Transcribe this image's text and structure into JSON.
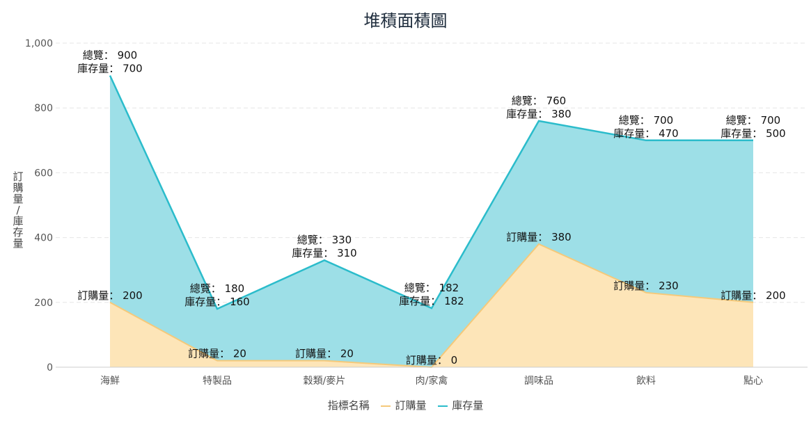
{
  "chart_data": {
    "type": "area",
    "stacked": true,
    "title": "堆積面積圖",
    "ylabel": "訂購量/庫存量",
    "legend_title": "指標名稱",
    "legend_position": "bottom",
    "categories": [
      "海鮮",
      "特製品",
      "穀類/麥片",
      "肉/家禽",
      "調味品",
      "飲料",
      "點心"
    ],
    "series": [
      {
        "name": "訂購量",
        "values": [
          200,
          20,
          20,
          0,
          380,
          230,
          200
        ],
        "color": "#f5c97a",
        "fill": "#fde5b8"
      },
      {
        "name": "庫存量",
        "values": [
          700,
          160,
          310,
          182,
          380,
          470,
          500
        ],
        "color": "#2bbccb",
        "fill": "#9ddfe7"
      }
    ],
    "totals": [
      900,
      180,
      330,
      182,
      760,
      700,
      700
    ],
    "total_label": "總覽",
    "yticks": [
      0,
      200,
      400,
      600,
      800,
      1000
    ],
    "ytick_labels": [
      "0",
      "200",
      "400",
      "600",
      "800",
      "1,000"
    ],
    "ylim": [
      0,
      1000
    ],
    "grid": true
  }
}
